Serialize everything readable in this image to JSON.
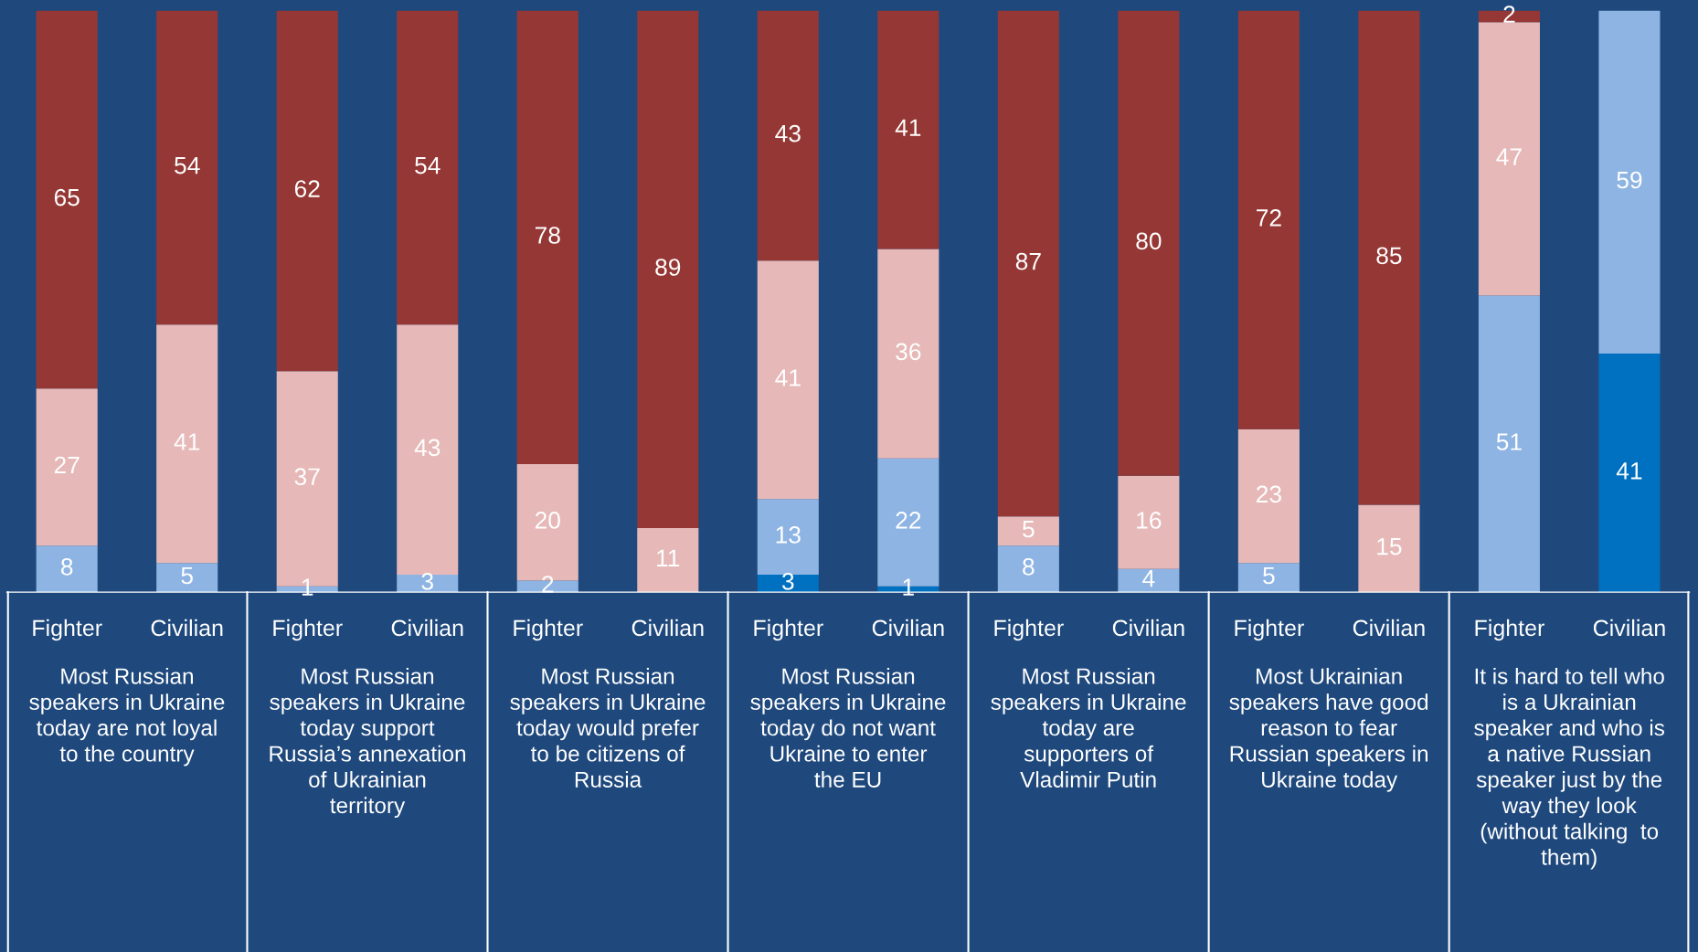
{
  "chart_data": {
    "type": "bar",
    "stacked": true,
    "data_labels": true,
    "legend": false,
    "tick_labels": "x",
    "ylim": [
      0,
      100
    ],
    "categories": [
      "Fighter",
      "Civilian",
      "Fighter",
      "Civilian",
      "Fighter",
      "Civilian",
      "Fighter",
      "Civilian",
      "Fighter",
      "Civilian",
      "Fighter",
      "Civilian",
      "Fighter",
      "Civilian"
    ],
    "series": [
      {
        "color": "#0070c0",
        "values": [
          null,
          null,
          null,
          null,
          null,
          null,
          3,
          1,
          null,
          null,
          null,
          null,
          null,
          41
        ]
      },
      {
        "color": "#8eb4e3",
        "values": [
          8,
          5,
          1,
          3,
          2,
          null,
          13,
          22,
          8,
          4,
          5,
          null,
          51,
          59
        ]
      },
      {
        "color": "#e6b9b8",
        "values": [
          27,
          41,
          37,
          43,
          20,
          11,
          41,
          36,
          5,
          16,
          23,
          15,
          47,
          null
        ]
      },
      {
        "color": "#953735",
        "values": [
          65,
          54,
          62,
          54,
          78,
          89,
          43,
          41,
          87,
          80,
          72,
          85,
          2,
          null
        ]
      }
    ],
    "annotations": [
      "Most Russian\nspeakers in Ukraine\ntoday are not loyal\nto the country",
      "Most Russian\nspeakers in Ukraine\ntoday support\nRussia’s annexation\nof Ukrainian\nterritory",
      "Most Russian\nspeakers in Ukraine\ntoday would prefer\nto be citizens of\nRussia",
      "Most Russian\nspeakers in Ukraine\ntoday do not want\nUkraine to enter\nthe EU",
      "Most Russian\nspeakers in Ukraine\ntoday are\nsupporters of\nVladimir Putin",
      "Most Ukrainian\nspeakers have good\nreason to fear\nRussian speakers in\nUkraine today",
      "It is hard to tell who\nis a Ukrainian\nspeaker and who is\na native Russian\nspeaker just by the\nway they look\n(without talking  to\nthem)"
    ]
  }
}
